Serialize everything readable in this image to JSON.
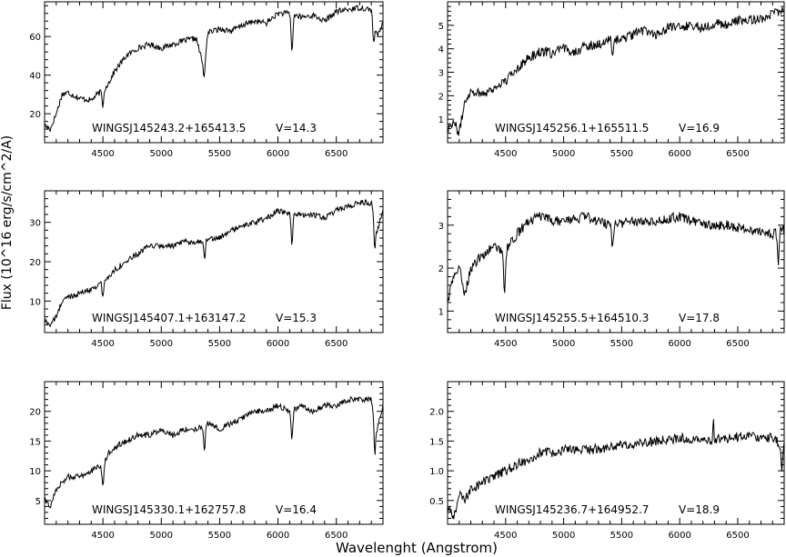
{
  "figure": {
    "ylabel": "Flux (10^16 erg/s/cm^2/A)",
    "xlabel": "Wavelenght (Angstrom)"
  },
  "chart_data": [
    {
      "type": "line",
      "label": "WINGSJ145243.2+165413.5",
      "mag": "V=14.3",
      "xlim": [
        4000,
        6900
      ],
      "ylim": [
        5,
        78
      ],
      "xticks": [
        4500,
        5000,
        5500,
        6000,
        6500
      ],
      "yticks": [
        20,
        40,
        60
      ],
      "x": [
        4000,
        4050,
        4100,
        4150,
        4200,
        4300,
        4400,
        4450,
        4500,
        4550,
        4600,
        4700,
        4800,
        4900,
        5000,
        5100,
        5200,
        5300,
        5360,
        5400,
        5500,
        5600,
        5700,
        5800,
        5900,
        6000,
        6100,
        6200,
        6300,
        6400,
        6500,
        6600,
        6700,
        6800,
        6850,
        6900
      ],
      "y": [
        14,
        12,
        20,
        30,
        31,
        28,
        27,
        30,
        32,
        36,
        42,
        50,
        54,
        56,
        54,
        56,
        58,
        59,
        45,
        62,
        64,
        63,
        66,
        68,
        67,
        72,
        72,
        70,
        71,
        68,
        73,
        74,
        75,
        74,
        60,
        67
      ],
      "dips": [
        {
          "x": 4500,
          "depth": 8
        },
        {
          "x": 5370,
          "depth": 10
        },
        {
          "x": 6120,
          "depth": 20
        },
        {
          "x": 6820,
          "depth": 12
        }
      ]
    },
    {
      "type": "line",
      "label": "WINGSJ145256.1+165511.5",
      "mag": "V=16.9",
      "xlim": [
        4000,
        6900
      ],
      "ylim": [
        0,
        6
      ],
      "xticks": [
        4500,
        5000,
        5500,
        6000,
        6500
      ],
      "yticks": [
        1,
        2,
        3,
        4,
        5
      ],
      "x": [
        4000,
        4050,
        4100,
        4150,
        4200,
        4300,
        4400,
        4450,
        4500,
        4600,
        4700,
        4800,
        4900,
        5000,
        5100,
        5200,
        5300,
        5400,
        5500,
        5600,
        5700,
        5800,
        5900,
        6000,
        6100,
        6200,
        6300,
        6400,
        6500,
        6600,
        6700,
        6800,
        6900
      ],
      "y": [
        0.6,
        0.9,
        0.4,
        1.8,
        2.2,
        2.1,
        2.3,
        2.5,
        2.6,
        3.2,
        3.6,
        3.9,
        3.8,
        4.0,
        3.9,
        4.1,
        4.2,
        4.4,
        4.4,
        4.6,
        4.8,
        4.6,
        4.9,
        4.9,
        5.0,
        4.9,
        5.1,
        5.0,
        5.2,
        5.2,
        5.3,
        5.5,
        5.7
      ],
      "dips": [
        {
          "x": 5420,
          "depth": 0.8
        }
      ]
    },
    {
      "type": "line",
      "label": "WINGSJ145407.1+163147.2",
      "mag": "V=15.3",
      "xlim": [
        4000,
        6900
      ],
      "ylim": [
        2,
        38
      ],
      "xticks": [
        4500,
        5000,
        5500,
        6000,
        6500
      ],
      "yticks": [
        10,
        20,
        30
      ],
      "x": [
        4000,
        4050,
        4100,
        4150,
        4200,
        4300,
        4400,
        4500,
        4550,
        4600,
        4700,
        4800,
        4900,
        5000,
        5100,
        5200,
        5300,
        5400,
        5500,
        5600,
        5700,
        5800,
        5900,
        6000,
        6100,
        6200,
        6300,
        6400,
        6500,
        6600,
        6700,
        6800,
        6850,
        6900
      ],
      "y": [
        5,
        4,
        6,
        10,
        11,
        12,
        13,
        15,
        16,
        18,
        20,
        22,
        24,
        24,
        24,
        25,
        25,
        26,
        26,
        28,
        29,
        30,
        31,
        33,
        32,
        32,
        32,
        31,
        33,
        34,
        35,
        35,
        28,
        33
      ],
      "dips": [
        {
          "x": 4500,
          "depth": 4
        },
        {
          "x": 5370,
          "depth": 5
        },
        {
          "x": 6120,
          "depth": 8
        },
        {
          "x": 6830,
          "depth": 8
        }
      ]
    },
    {
      "type": "line",
      "label": "WINGSJ145255.5+164510.3",
      "mag": "V=17.8",
      "xlim": [
        4000,
        6900
      ],
      "ylim": [
        0.5,
        3.8
      ],
      "xticks": [
        4500,
        5000,
        5500,
        6000,
        6500
      ],
      "yticks": [
        1,
        2,
        3
      ],
      "x": [
        4000,
        4050,
        4100,
        4150,
        4200,
        4300,
        4400,
        4500,
        4600,
        4700,
        4800,
        4900,
        5000,
        5200,
        5400,
        5600,
        5800,
        6000,
        6200,
        6400,
        6600,
        6800,
        6900
      ],
      "y": [
        1.2,
        1.8,
        2.0,
        1.4,
        2.0,
        2.3,
        2.5,
        2.4,
        2.8,
        3.1,
        3.2,
        3.1,
        3.1,
        3.2,
        3.0,
        3.1,
        3.1,
        3.2,
        3.0,
        3.0,
        2.9,
        2.8,
        2.9
      ],
      "dips": [
        {
          "x": 4490,
          "depth": 1.0
        },
        {
          "x": 5420,
          "depth": 0.5
        },
        {
          "x": 6850,
          "depth": 0.7
        }
      ]
    },
    {
      "type": "line",
      "label": "WINGSJ145330.1+162757.8",
      "mag": "V=16.4",
      "xlim": [
        4000,
        6900
      ],
      "ylim": [
        1,
        25
      ],
      "xticks": [
        4500,
        5000,
        5500,
        6000,
        6500
      ],
      "yticks": [
        5,
        10,
        15,
        20
      ],
      "x": [
        4000,
        4050,
        4100,
        4150,
        4200,
        4300,
        4400,
        4500,
        4550,
        4600,
        4700,
        4800,
        4900,
        5000,
        5100,
        5200,
        5300,
        5400,
        5500,
        5600,
        5700,
        5800,
        5900,
        6000,
        6100,
        6200,
        6300,
        6400,
        6500,
        6600,
        6700,
        6800,
        6850,
        6900
      ],
      "y": [
        5,
        4,
        7,
        8,
        9,
        9,
        10,
        11,
        13,
        14,
        15,
        16,
        16,
        17,
        16,
        17,
        17,
        18,
        17,
        18,
        19,
        20,
        20,
        21,
        20,
        21,
        20,
        21,
        21,
        22,
        22,
        22,
        17,
        21
      ],
      "dips": [
        {
          "x": 4500,
          "depth": 4
        },
        {
          "x": 5370,
          "depth": 4
        },
        {
          "x": 6120,
          "depth": 5
        },
        {
          "x": 6830,
          "depth": 6
        }
      ]
    },
    {
      "type": "line",
      "label": "WINGSJ145236.7+164952.7",
      "mag": "V=18.9",
      "xlim": [
        4000,
        6900
      ],
      "ylim": [
        0.1,
        2.5
      ],
      "xticks": [
        4500,
        5000,
        5500,
        6000,
        6500
      ],
      "yticks": [
        0.5,
        1.0,
        1.5,
        2.0
      ],
      "x": [
        4000,
        4050,
        4100,
        4150,
        4200,
        4300,
        4400,
        4500,
        4600,
        4700,
        4800,
        4900,
        5000,
        5200,
        5400,
        5600,
        5800,
        6000,
        6200,
        6400,
        6600,
        6800,
        6900
      ],
      "y": [
        0.4,
        0.2,
        0.6,
        0.5,
        0.7,
        0.8,
        0.9,
        1.0,
        1.1,
        1.2,
        1.3,
        1.3,
        1.35,
        1.35,
        1.4,
        1.45,
        1.5,
        1.55,
        1.5,
        1.55,
        1.6,
        1.55,
        1.4
      ],
      "dips": [
        {
          "x": 6880,
          "depth": 0.4
        }
      ],
      "spikes": [
        {
          "x": 6290,
          "height": 0.5
        }
      ]
    }
  ]
}
